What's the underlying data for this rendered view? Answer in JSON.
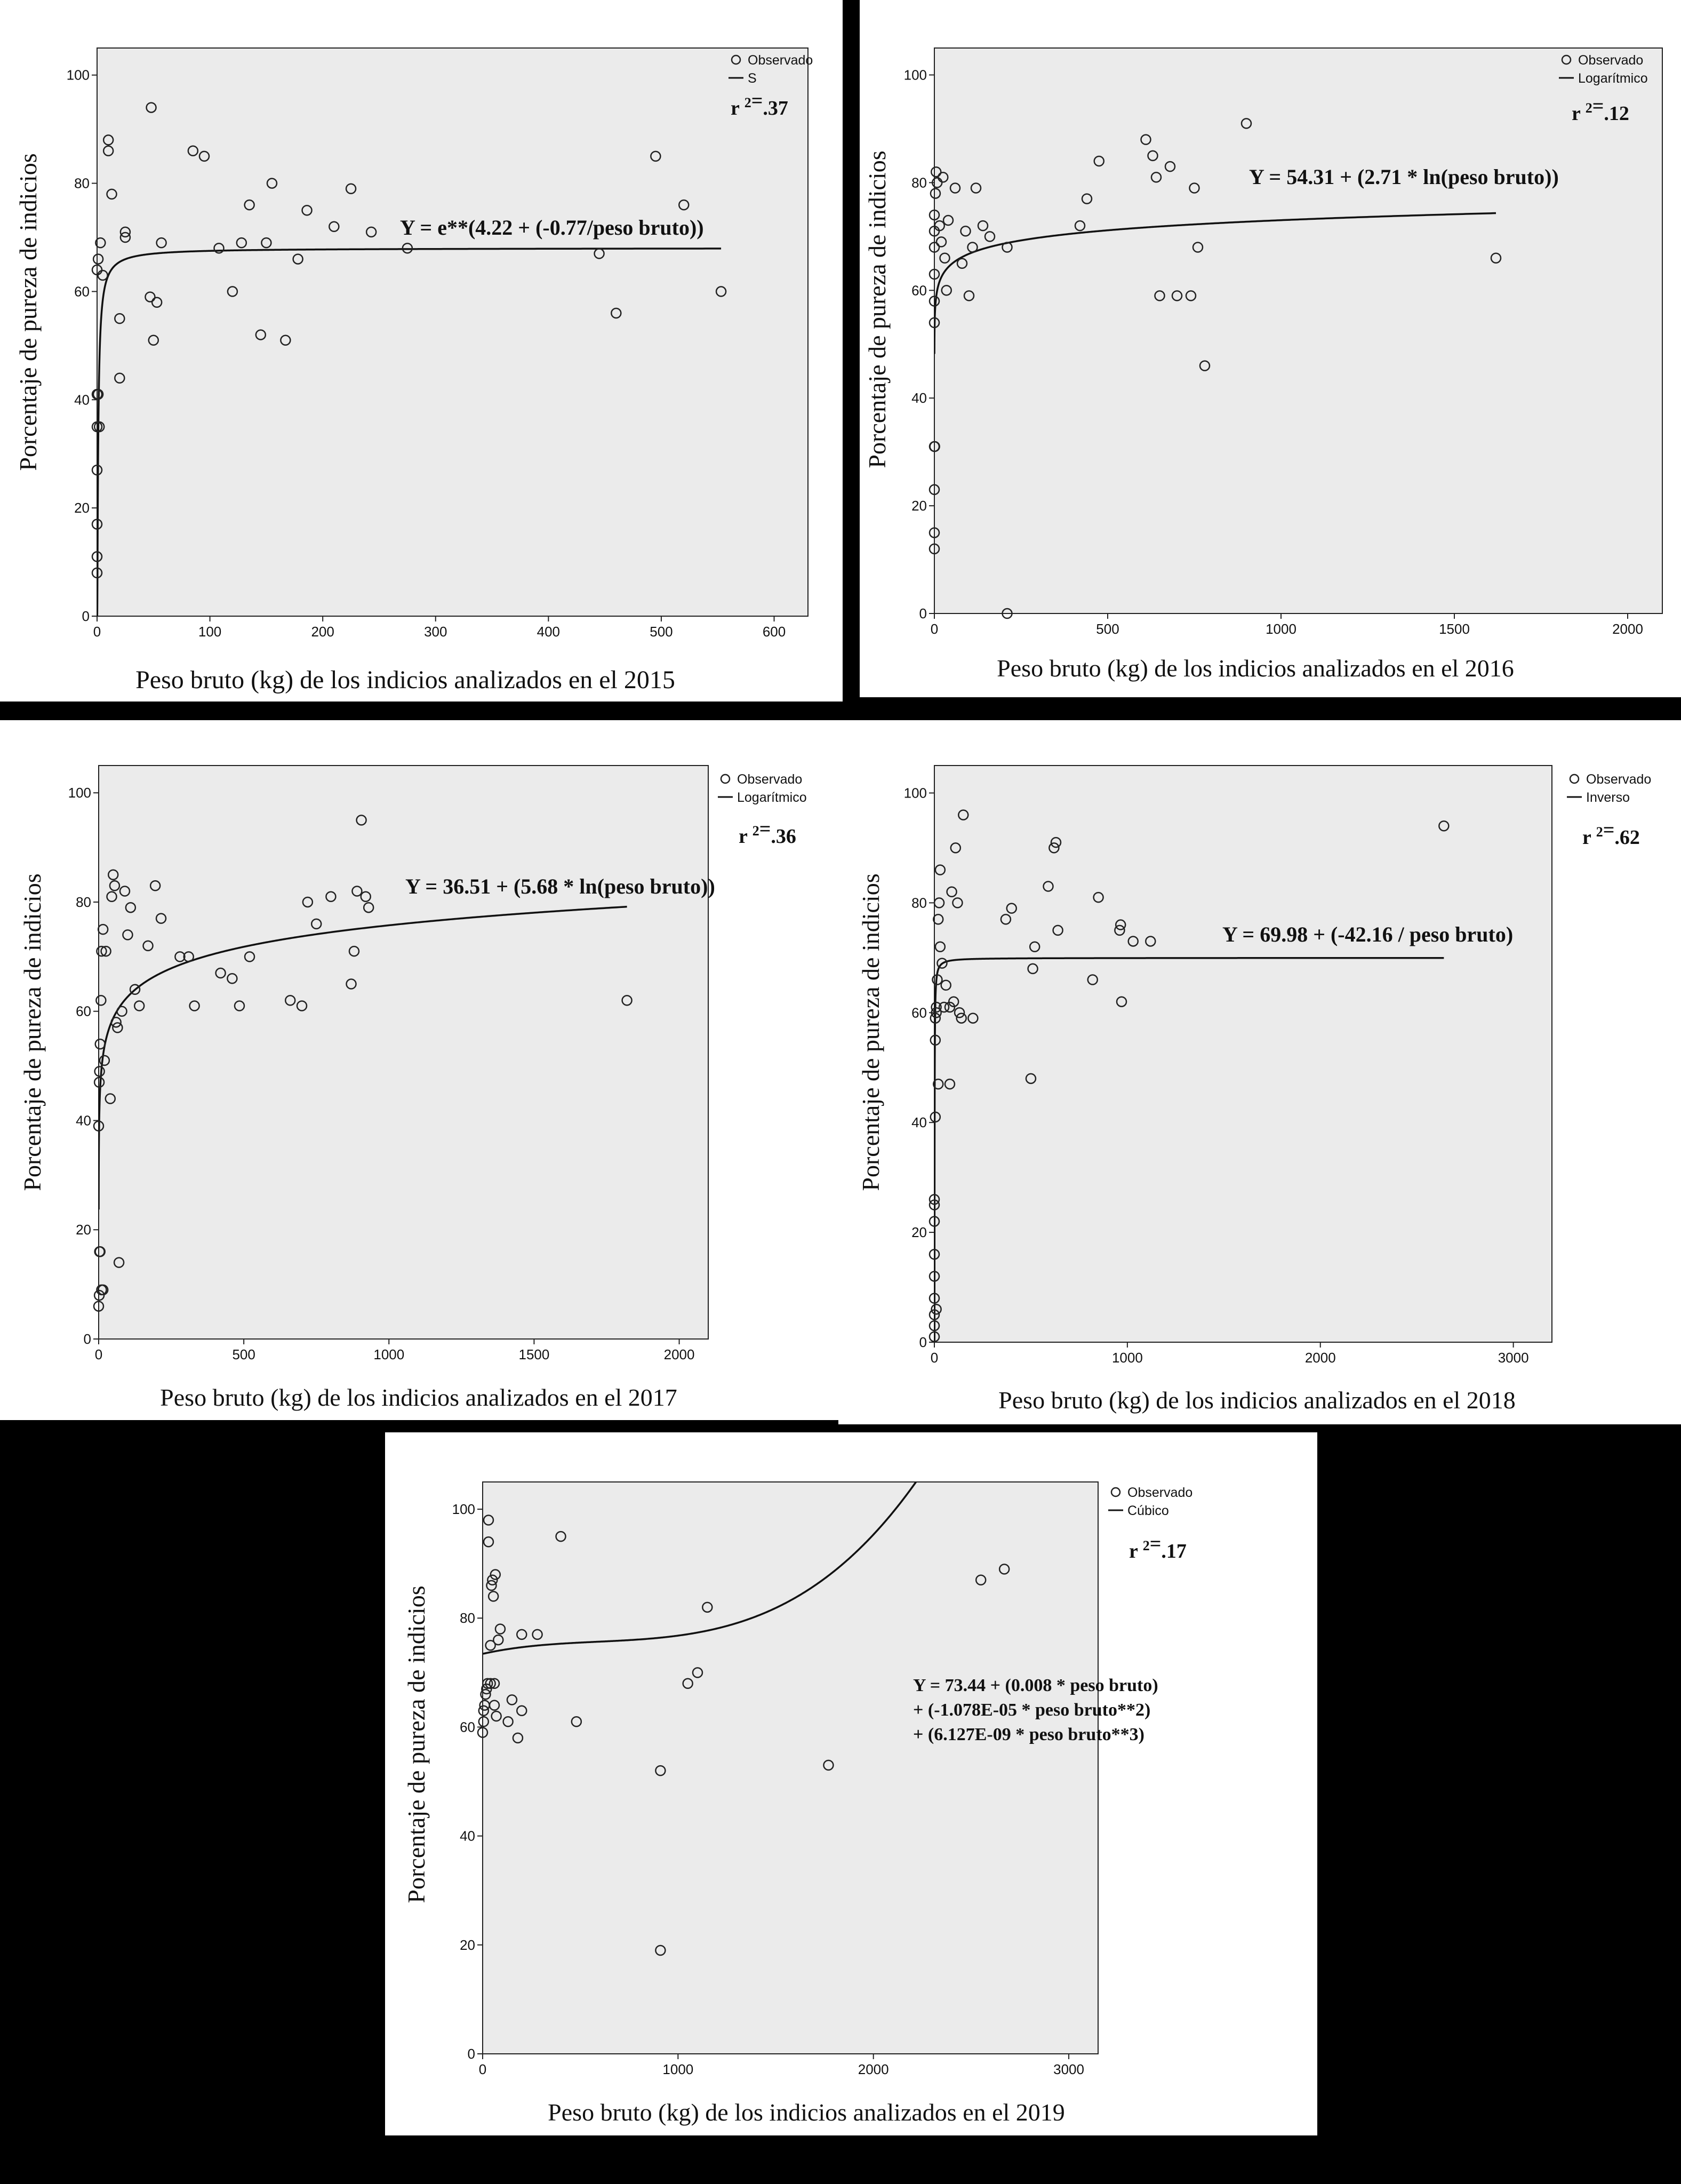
{
  "chart_data": [
    {
      "type": "scatter",
      "xlabel": "Peso bruto (kg) de los indicios analizados en el 2015",
      "ylabel": "Porcentaje de pureza de indicios",
      "xlim": [
        0,
        630
      ],
      "ylim": [
        0,
        105
      ],
      "xticks": [
        "0",
        "100",
        "200",
        "300",
        "400",
        "500",
        "600"
      ],
      "yticks": [
        "0",
        "20",
        "40",
        "60",
        "80",
        "100"
      ],
      "legend": {
        "observed": "Observado",
        "fit": "S",
        "position": "top-right"
      },
      "r2": ".37",
      "equation": [
        "Y = e**(4.22 + (-0.77/peso bruto))"
      ],
      "fit": {
        "model": "S",
        "b0": 4.22,
        "b1": -0.77
      },
      "background": "#ebebeb",
      "series": [
        {
          "points": [
            [
              0,
              8
            ],
            [
              0,
              11
            ],
            [
              0,
              17
            ],
            [
              0,
              27
            ],
            [
              0,
              35
            ],
            [
              0,
              41
            ],
            [
              1,
              41
            ],
            [
              2,
              35
            ],
            [
              0,
              64
            ],
            [
              1,
              66
            ],
            [
              3,
              69
            ],
            [
              5,
              63
            ],
            [
              10,
              86
            ],
            [
              10,
              88
            ],
            [
              13,
              78
            ],
            [
              20,
              55
            ],
            [
              20,
              44
            ],
            [
              25,
              70
            ],
            [
              25,
              71
            ],
            [
              47,
              59
            ],
            [
              48,
              94
            ],
            [
              50,
              51
            ],
            [
              53,
              58
            ],
            [
              57,
              69
            ],
            [
              85,
              86
            ],
            [
              95,
              85
            ],
            [
              108,
              68
            ],
            [
              120,
              60
            ],
            [
              128,
              69
            ],
            [
              135,
              76
            ],
            [
              145,
              52
            ],
            [
              150,
              69
            ],
            [
              155,
              80
            ],
            [
              167,
              51
            ],
            [
              178,
              66
            ],
            [
              186,
              75
            ],
            [
              210,
              72
            ],
            [
              225,
              79
            ],
            [
              243,
              71
            ],
            [
              275,
              68
            ],
            [
              445,
              67
            ],
            [
              460,
              56
            ],
            [
              495,
              85
            ],
            [
              520,
              76
            ],
            [
              553,
              60
            ]
          ]
        }
      ]
    },
    {
      "type": "scatter",
      "xlabel": "Peso bruto (kg) de los indicios analizados en el 2016",
      "ylabel": "Porcentaje de pureza de indicios",
      "xlim": [
        0,
        2100
      ],
      "ylim": [
        0,
        105
      ],
      "xticks": [
        "0",
        "500",
        "1000",
        "1500",
        "2000"
      ],
      "yticks": [
        "0",
        "20",
        "40",
        "60",
        "80",
        "100"
      ],
      "legend": {
        "observed": "Observado",
        "fit": "Logarítmico",
        "position": "top-right"
      },
      "r2": ".12",
      "equation": [
        "Y = 54.31 + (2.71 * ln(peso bruto))"
      ],
      "fit": {
        "model": "log",
        "b0": 54.31,
        "b1": 2.71
      },
      "background": "#ebebeb",
      "series": [
        {
          "points": [
            [
              0,
              12
            ],
            [
              0,
              15
            ],
            [
              0,
              23
            ],
            [
              0,
              31
            ],
            [
              1,
              31
            ],
            [
              0,
              54
            ],
            [
              0,
              58
            ],
            [
              0,
              63
            ],
            [
              0,
              68
            ],
            [
              0,
              71
            ],
            [
              0,
              74
            ],
            [
              3,
              78
            ],
            [
              5,
              82
            ],
            [
              8,
              80
            ],
            [
              15,
              72
            ],
            [
              20,
              69
            ],
            [
              25,
              81
            ],
            [
              30,
              66
            ],
            [
              35,
              60
            ],
            [
              40,
              73
            ],
            [
              60,
              79
            ],
            [
              80,
              65
            ],
            [
              90,
              71
            ],
            [
              100,
              59
            ],
            [
              110,
              68
            ],
            [
              120,
              79
            ],
            [
              140,
              72
            ],
            [
              160,
              70
            ],
            [
              210,
              68
            ],
            [
              210,
              0
            ],
            [
              420,
              72
            ],
            [
              440,
              77
            ],
            [
              475,
              84
            ],
            [
              610,
              88
            ],
            [
              630,
              85
            ],
            [
              640,
              81
            ],
            [
              650,
              59
            ],
            [
              680,
              83
            ],
            [
              700,
              59
            ],
            [
              740,
              59
            ],
            [
              750,
              79
            ],
            [
              760,
              68
            ],
            [
              780,
              46
            ],
            [
              900,
              91
            ],
            [
              1620,
              66
            ]
          ]
        }
      ]
    },
    {
      "type": "scatter",
      "xlabel": "Peso bruto (kg) de los indicios analizados en el 2017",
      "ylabel": "Porcentaje de pureza de indicios",
      "xlim": [
        0,
        2100
      ],
      "ylim": [
        0,
        105
      ],
      "xticks": [
        "0",
        "500",
        "1000",
        "1500",
        "2000"
      ],
      "yticks": [
        "0",
        "20",
        "40",
        "60",
        "80",
        "100"
      ],
      "legend": {
        "observed": "Observado",
        "fit": "Logarítmico",
        "position": "top-right"
      },
      "r2": ".36",
      "equation": [
        "Y = 36.51 + (5.68 * ln(peso bruto))"
      ],
      "fit": {
        "model": "log",
        "b0": 36.51,
        "b1": 5.68
      },
      "background": "#ebebeb",
      "series": [
        {
          "points": [
            [
              0,
              6
            ],
            [
              2,
              8
            ],
            [
              3,
              16
            ],
            [
              5,
              16
            ],
            [
              10,
              9
            ],
            [
              15,
              9
            ],
            [
              0,
              39
            ],
            [
              2,
              47
            ],
            [
              3,
              49
            ],
            [
              5,
              54
            ],
            [
              8,
              62
            ],
            [
              10,
              71
            ],
            [
              15,
              75
            ],
            [
              20,
              51
            ],
            [
              25,
              71
            ],
            [
              40,
              44
            ],
            [
              45,
              81
            ],
            [
              50,
              85
            ],
            [
              55,
              83
            ],
            [
              60,
              58
            ],
            [
              65,
              57
            ],
            [
              70,
              14
            ],
            [
              80,
              60
            ],
            [
              90,
              82
            ],
            [
              100,
              74
            ],
            [
              110,
              79
            ],
            [
              125,
              64
            ],
            [
              140,
              61
            ],
            [
              170,
              72
            ],
            [
              195,
              83
            ],
            [
              215,
              77
            ],
            [
              280,
              70
            ],
            [
              310,
              70
            ],
            [
              330,
              61
            ],
            [
              420,
              67
            ],
            [
              460,
              66
            ],
            [
              485,
              61
            ],
            [
              520,
              70
            ],
            [
              660,
              62
            ],
            [
              700,
              61
            ],
            [
              720,
              80
            ],
            [
              750,
              76
            ],
            [
              800,
              81
            ],
            [
              870,
              65
            ],
            [
              880,
              71
            ],
            [
              890,
              82
            ],
            [
              905,
              95
            ],
            [
              920,
              81
            ],
            [
              930,
              79
            ],
            [
              1820,
              62
            ]
          ]
        }
      ]
    },
    {
      "type": "scatter",
      "xlabel": "Peso bruto (kg) de los indicios analizados en el 2018",
      "ylabel": "Porcentaje de pureza de indicios",
      "xlim": [
        0,
        3200
      ],
      "ylim": [
        0,
        105
      ],
      "xticks": [
        "0",
        "1000",
        "2000",
        "3000"
      ],
      "yticks": [
        "0",
        "20",
        "40",
        "60",
        "80",
        "100"
      ],
      "legend": {
        "observed": "Observado",
        "fit": "Inverso",
        "position": "top-right"
      },
      "r2": ".62",
      "equation": [
        "Y = 69.98 + (-42.16 / peso bruto)"
      ],
      "fit": {
        "model": "inverse",
        "b0": 69.98,
        "b1": -42.16
      },
      "background": "#ebebeb",
      "series": [
        {
          "points": [
            [
              0,
              1
            ],
            [
              0,
              3
            ],
            [
              0,
              5
            ],
            [
              0,
              8
            ],
            [
              0,
              12
            ],
            [
              0,
              16
            ],
            [
              0,
              22
            ],
            [
              0,
              25
            ],
            [
              0,
              26
            ],
            [
              10,
              6
            ],
            [
              5,
              41
            ],
            [
              5,
              55
            ],
            [
              5,
              59
            ],
            [
              10,
              60
            ],
            [
              10,
              61
            ],
            [
              15,
              66
            ],
            [
              20,
              47
            ],
            [
              20,
              77
            ],
            [
              25,
              80
            ],
            [
              30,
              86
            ],
            [
              30,
              72
            ],
            [
              40,
              69
            ],
            [
              50,
              61
            ],
            [
              60,
              65
            ],
            [
              80,
              61
            ],
            [
              80,
              47
            ],
            [
              90,
              82
            ],
            [
              100,
              62
            ],
            [
              110,
              90
            ],
            [
              120,
              80
            ],
            [
              130,
              60
            ],
            [
              140,
              59
            ],
            [
              150,
              96
            ],
            [
              200,
              59
            ],
            [
              370,
              77
            ],
            [
              400,
              79
            ],
            [
              500,
              48
            ],
            [
              510,
              68
            ],
            [
              520,
              72
            ],
            [
              590,
              83
            ],
            [
              620,
              90
            ],
            [
              630,
              91
            ],
            [
              640,
              75
            ],
            [
              820,
              66
            ],
            [
              850,
              81
            ],
            [
              960,
              75
            ],
            [
              965,
              76
            ],
            [
              970,
              62
            ],
            [
              1030,
              73
            ],
            [
              1120,
              73
            ],
            [
              2640,
              94
            ]
          ]
        }
      ]
    },
    {
      "type": "scatter",
      "xlabel": "Peso bruto (kg) de los indicios analizados en el 2019",
      "ylabel": "Porcentaje de pureza de indicios",
      "xlim": [
        0,
        3150
      ],
      "ylim": [
        0,
        105
      ],
      "xticks": [
        "0",
        "1000",
        "2000",
        "3000"
      ],
      "yticks": [
        "0",
        "20",
        "40",
        "60",
        "80",
        "100"
      ],
      "legend": {
        "observed": "Observado",
        "fit": "Cúbico",
        "position": "top-right"
      },
      "r2": ".17",
      "equation": [
        "Y = 73.44 + (0.008 * peso bruto)",
        "+ (-1.078E-05 * peso bruto**2)",
        "+ (6.127E-09 * peso bruto**3)"
      ],
      "fit": {
        "model": "cubic",
        "b0": 73.44,
        "b1": 0.008,
        "b2": -1.078e-05,
        "b3": 6.127e-09
      },
      "background": "#ebebeb",
      "series": [
        {
          "points": [
            [
              0,
              59
            ],
            [
              5,
              61
            ],
            [
              5,
              63
            ],
            [
              10,
              64
            ],
            [
              15,
              66
            ],
            [
              20,
              67
            ],
            [
              25,
              68
            ],
            [
              30,
              98
            ],
            [
              30,
              94
            ],
            [
              40,
              75
            ],
            [
              40,
              68
            ],
            [
              45,
              86
            ],
            [
              50,
              87
            ],
            [
              55,
              84
            ],
            [
              60,
              68
            ],
            [
              60,
              64
            ],
            [
              65,
              88
            ],
            [
              70,
              62
            ],
            [
              80,
              76
            ],
            [
              90,
              78
            ],
            [
              130,
              61
            ],
            [
              150,
              65
            ],
            [
              180,
              58
            ],
            [
              200,
              63
            ],
            [
              200,
              77
            ],
            [
              280,
              77
            ],
            [
              400,
              95
            ],
            [
              480,
              61
            ],
            [
              910,
              52
            ],
            [
              910,
              19
            ],
            [
              1050,
              68
            ],
            [
              1100,
              70
            ],
            [
              1150,
              82
            ],
            [
              1770,
              53
            ],
            [
              2550,
              87
            ],
            [
              2670,
              89
            ]
          ]
        }
      ]
    }
  ]
}
